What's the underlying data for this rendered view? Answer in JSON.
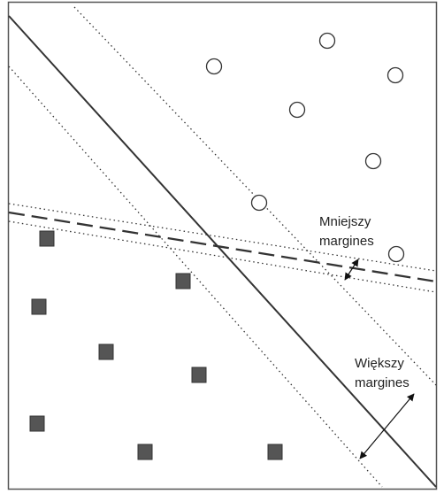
{
  "labels": {
    "smaller_margin_line1": "Mniejszy",
    "smaller_margin_line2": "margines",
    "larger_margin_line1": "Większy",
    "larger_margin_line2": "margines"
  },
  "colors": {
    "frame": "#555555",
    "line": "#333333",
    "square_fill": "#555555",
    "circle_stroke": "#333333"
  },
  "classes": {
    "circles": 7,
    "squares": 8
  }
}
